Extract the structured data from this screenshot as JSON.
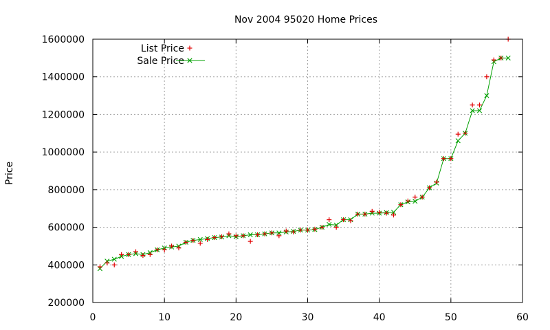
{
  "chart_data": {
    "type": "line",
    "title": "Nov 2004 95020 Home Prices",
    "xlabel": "",
    "ylabel": "Price",
    "xlim": [
      0,
      60
    ],
    "ylim": [
      200000,
      1600000
    ],
    "xticks": [
      0,
      10,
      20,
      30,
      40,
      50,
      60
    ],
    "yticks": [
      200000,
      400000,
      600000,
      800000,
      1000000,
      1200000,
      1400000,
      1600000
    ],
    "grid": true,
    "legend_position": "top-left",
    "x": [
      1,
      2,
      3,
      4,
      5,
      6,
      7,
      8,
      9,
      10,
      11,
      12,
      13,
      14,
      15,
      16,
      17,
      18,
      19,
      20,
      21,
      22,
      23,
      24,
      25,
      26,
      27,
      28,
      29,
      30,
      31,
      32,
      33,
      34,
      35,
      36,
      37,
      38,
      39,
      40,
      41,
      42,
      43,
      44,
      45,
      46,
      47,
      48,
      49,
      50,
      51,
      52,
      53,
      54,
      55,
      56,
      57,
      58
    ],
    "series": [
      {
        "name": "List Price",
        "style": "points",
        "marker": "plus",
        "color": "#e00000",
        "values": [
          390000,
          410000,
          400000,
          455000,
          455000,
          470000,
          450000,
          455000,
          480000,
          480000,
          500000,
          490000,
          520000,
          530000,
          515000,
          535000,
          545000,
          550000,
          565000,
          555000,
          555000,
          525000,
          560000,
          565000,
          570000,
          555000,
          580000,
          575000,
          585000,
          585000,
          590000,
          600000,
          640000,
          600000,
          640000,
          635000,
          670000,
          670000,
          685000,
          680000,
          675000,
          665000,
          720000,
          740000,
          760000,
          760000,
          810000,
          840000,
          965000,
          965000,
          1095000,
          1100000,
          1250000,
          1250000,
          1400000,
          1490000,
          1500000,
          1600000
        ]
      },
      {
        "name": "Sale Price",
        "style": "linespoints",
        "marker": "x",
        "color": "#00a000",
        "values": [
          380000,
          420000,
          430000,
          445000,
          455000,
          460000,
          455000,
          465000,
          480000,
          490000,
          495000,
          500000,
          520000,
          530000,
          535000,
          540000,
          545000,
          548000,
          555000,
          550000,
          555000,
          560000,
          560000,
          565000,
          570000,
          570000,
          575000,
          578000,
          585000,
          585000,
          588000,
          600000,
          615000,
          612000,
          640000,
          640000,
          670000,
          670000,
          675000,
          675000,
          678000,
          680000,
          720000,
          735000,
          738000,
          760000,
          810000,
          835000,
          965000,
          965000,
          1060000,
          1100000,
          1220000,
          1220000,
          1300000,
          1480000,
          1500000,
          1500000
        ]
      }
    ]
  }
}
